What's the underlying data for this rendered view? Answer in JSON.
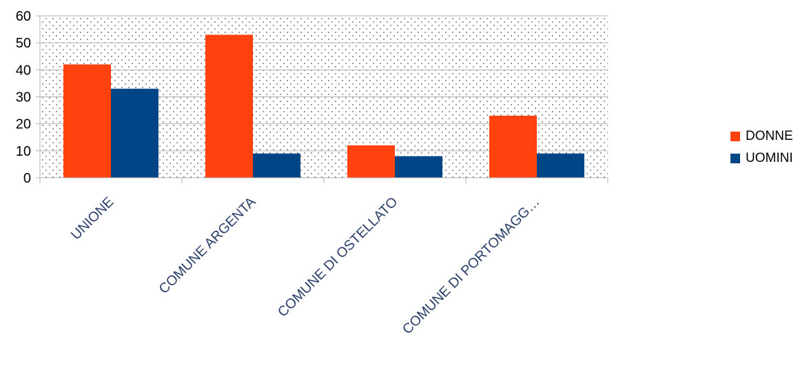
{
  "chart_data": {
    "type": "bar",
    "categories": [
      "UNIONE",
      "COMUNE ARGENTA",
      "COMUNE DI OSTELLATO",
      "COMUNE DI PORTOMAGG…"
    ],
    "series": [
      {
        "name": "DONNE",
        "values": [
          42,
          53,
          12,
          23
        ],
        "color": "#ff420e"
      },
      {
        "name": "UOMINI",
        "values": [
          33,
          9,
          8,
          9
        ],
        "color": "#004586"
      }
    ],
    "title": "",
    "xlabel": "",
    "ylabel": "",
    "ylim": [
      0,
      60
    ],
    "yticks": [
      "0",
      "10",
      "20",
      "30",
      "40",
      "50",
      "60"
    ],
    "grid": true,
    "legend_position": "right"
  }
}
